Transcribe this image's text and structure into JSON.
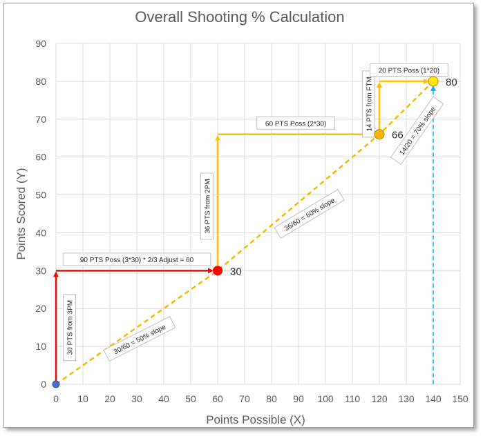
{
  "chart_data": {
    "type": "scatter",
    "title": "Overall Shooting % Calculation",
    "xlabel": "Points Possible (X)",
    "ylabel": "Points Scored (Y)",
    "xlim": [
      0,
      150
    ],
    "ylim": [
      0,
      90
    ],
    "xticks": [
      0,
      10,
      20,
      30,
      40,
      50,
      60,
      70,
      80,
      90,
      100,
      110,
      120,
      130,
      140,
      150
    ],
    "yticks": [
      0,
      10,
      20,
      30,
      40,
      50,
      60,
      70,
      80,
      90
    ],
    "grid": true,
    "points": [
      {
        "x": 0,
        "y": 0,
        "color": "#4472C4",
        "label": ""
      },
      {
        "x": 60,
        "y": 30,
        "color": "#FF0000",
        "label": "30"
      },
      {
        "x": 120,
        "y": 66,
        "color": "#F5B800",
        "label": "66"
      },
      {
        "x": 140,
        "y": 80,
        "color": "#FFEB00",
        "label": "80"
      }
    ],
    "slope_line": {
      "x": [
        0,
        60,
        120,
        140
      ],
      "y": [
        0,
        30,
        66,
        80
      ],
      "color": "#F5B800",
      "style": "dashed"
    },
    "arrows": [
      {
        "from": [
          0,
          0
        ],
        "to": [
          0,
          30
        ],
        "color": "#FF0000"
      },
      {
        "from": [
          0,
          30
        ],
        "to": [
          60,
          30
        ],
        "color": "#FF0000"
      },
      {
        "from": [
          60,
          30
        ],
        "to": [
          60,
          66
        ],
        "color": "#FFC000"
      },
      {
        "from": [
          60,
          66
        ],
        "to": [
          120,
          66
        ],
        "color": "#FFC000"
      },
      {
        "from": [
          120,
          66
        ],
        "to": [
          120,
          80
        ],
        "color": "#FFC000"
      },
      {
        "from": [
          120,
          80
        ],
        "to": [
          140,
          80
        ],
        "color": "#FFC000"
      },
      {
        "from": [
          140,
          0
        ],
        "to": [
          140,
          80
        ],
        "color": "#00B0F0",
        "style": "dashed"
      }
    ],
    "annotations": [
      {
        "text": "30 PTS from 3PM",
        "x": 5,
        "y": 15,
        "rotate": -90
      },
      {
        "text": "90 PTS Poss (3*30) * 2/3 Adjust = 60",
        "x": 30,
        "y": 33,
        "rotate": 0
      },
      {
        "text": "30/60 = 50% slope",
        "x": 31,
        "y": 12,
        "rotate": -27
      },
      {
        "text": "36 PTS from 2PM",
        "x": 56,
        "y": 47,
        "rotate": -90
      },
      {
        "text": "60 PTS Poss (2*30)",
        "x": 89,
        "y": 69,
        "rotate": 0
      },
      {
        "text": "36/60 = 60% slope",
        "x": 94,
        "y": 45,
        "rotate": -31
      },
      {
        "text": "14 PTS from FTM",
        "x": 116,
        "y": 74,
        "rotate": -90
      },
      {
        "text": "20 PTS Poss (1*20)",
        "x": 131,
        "y": 83,
        "rotate": 0
      },
      {
        "text": "14/20 = 70% slope",
        "x": 134,
        "y": 67,
        "rotate": -55
      }
    ]
  }
}
